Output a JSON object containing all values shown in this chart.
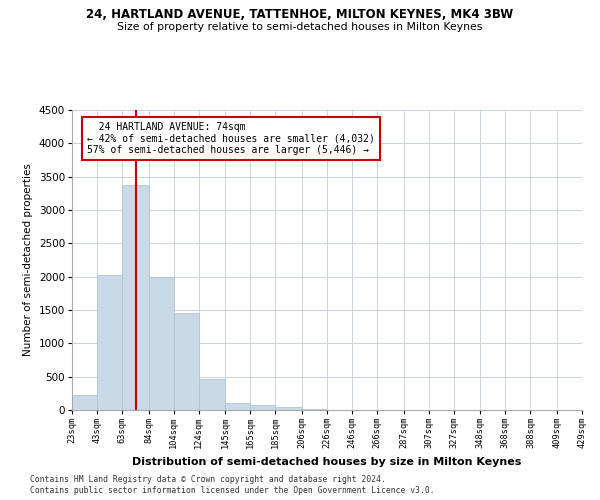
{
  "title": "24, HARTLAND AVENUE, TATTENHOE, MILTON KEYNES, MK4 3BW",
  "subtitle": "Size of property relative to semi-detached houses in Milton Keynes",
  "xlabel": "Distribution of semi-detached houses by size in Milton Keynes",
  "ylabel": "Number of semi-detached properties",
  "footer1": "Contains HM Land Registry data © Crown copyright and database right 2024.",
  "footer2": "Contains public sector information licensed under the Open Government Licence v3.0.",
  "annotation_title": "24 HARTLAND AVENUE: 74sqm",
  "annotation_line1": "← 42% of semi-detached houses are smaller (4,032)",
  "annotation_line2": "57% of semi-detached houses are larger (5,446) →",
  "property_size": 74,
  "bar_color": "#c9d9e8",
  "bar_edge_color": "#a8bfd0",
  "vline_color": "#cc0000",
  "annotation_box_color": "#cc0000",
  "background_color": "#ffffff",
  "grid_color": "#c8d4de",
  "categories": [
    "23sqm",
    "43sqm",
    "63sqm",
    "84sqm",
    "104sqm",
    "124sqm",
    "145sqm",
    "165sqm",
    "185sqm",
    "206sqm",
    "226sqm",
    "246sqm",
    "266sqm",
    "287sqm",
    "307sqm",
    "327sqm",
    "348sqm",
    "368sqm",
    "388sqm",
    "409sqm",
    "429sqm"
  ],
  "bin_edges": [
    23,
    43,
    63,
    84,
    104,
    124,
    145,
    165,
    185,
    206,
    226,
    246,
    266,
    287,
    307,
    327,
    348,
    368,
    388,
    409,
    429
  ],
  "values": [
    230,
    2020,
    3380,
    2000,
    1450,
    460,
    100,
    70,
    50,
    10,
    5,
    3,
    2,
    1,
    1,
    0,
    0,
    0,
    0,
    0
  ],
  "ylim": [
    0,
    4500
  ],
  "yticks": [
    0,
    500,
    1000,
    1500,
    2000,
    2500,
    3000,
    3500,
    4000,
    4500
  ]
}
